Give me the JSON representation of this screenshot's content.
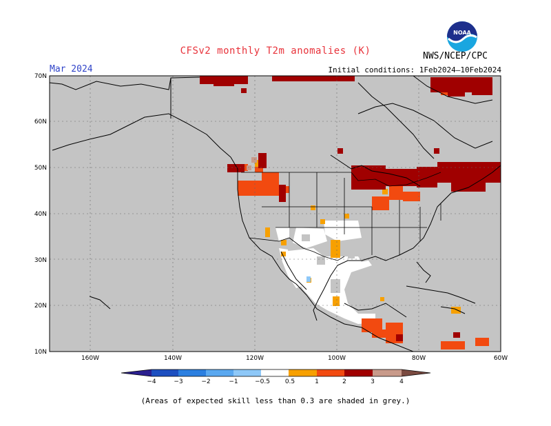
{
  "title": "CFSv2 monthly T2m anomalies (K)",
  "month": "Mar 2024",
  "initial_conditions": "Initial conditions: 1Feb2024–10Feb2024",
  "agency": "NWS/NCEP/CPC",
  "logo_text": "NOAA",
  "footnote": "(Areas of expected skill less than 0.3 are shaded in grey.)",
  "map": {
    "lon_range": [
      -170,
      -60
    ],
    "lat_range": [
      10,
      70
    ],
    "lat_labels": [
      "10N",
      "20N",
      "30N",
      "40N",
      "50N",
      "60N",
      "70N"
    ],
    "lon_labels": [
      "160W",
      "140W",
      "120W",
      "100W",
      "80W",
      "60W"
    ],
    "colors": {
      "land_skill_low": "#c4c4c4",
      "ocean": "#c4c4c4",
      "neutral": "#ffffff"
    }
  },
  "colorbar": {
    "labels": [
      "−4",
      "−3",
      "−2",
      "−1",
      "−0.5",
      "0.5",
      "1",
      "2",
      "3",
      "4"
    ],
    "colors": [
      "#2a1f8f",
      "#1d4fc0",
      "#2b7fe0",
      "#5aa8f0",
      "#8ec8f8",
      "#ffffff",
      "#f7a000",
      "#f24a10",
      "#a00000",
      "#c89a8a",
      "#7a4a40"
    ]
  }
}
